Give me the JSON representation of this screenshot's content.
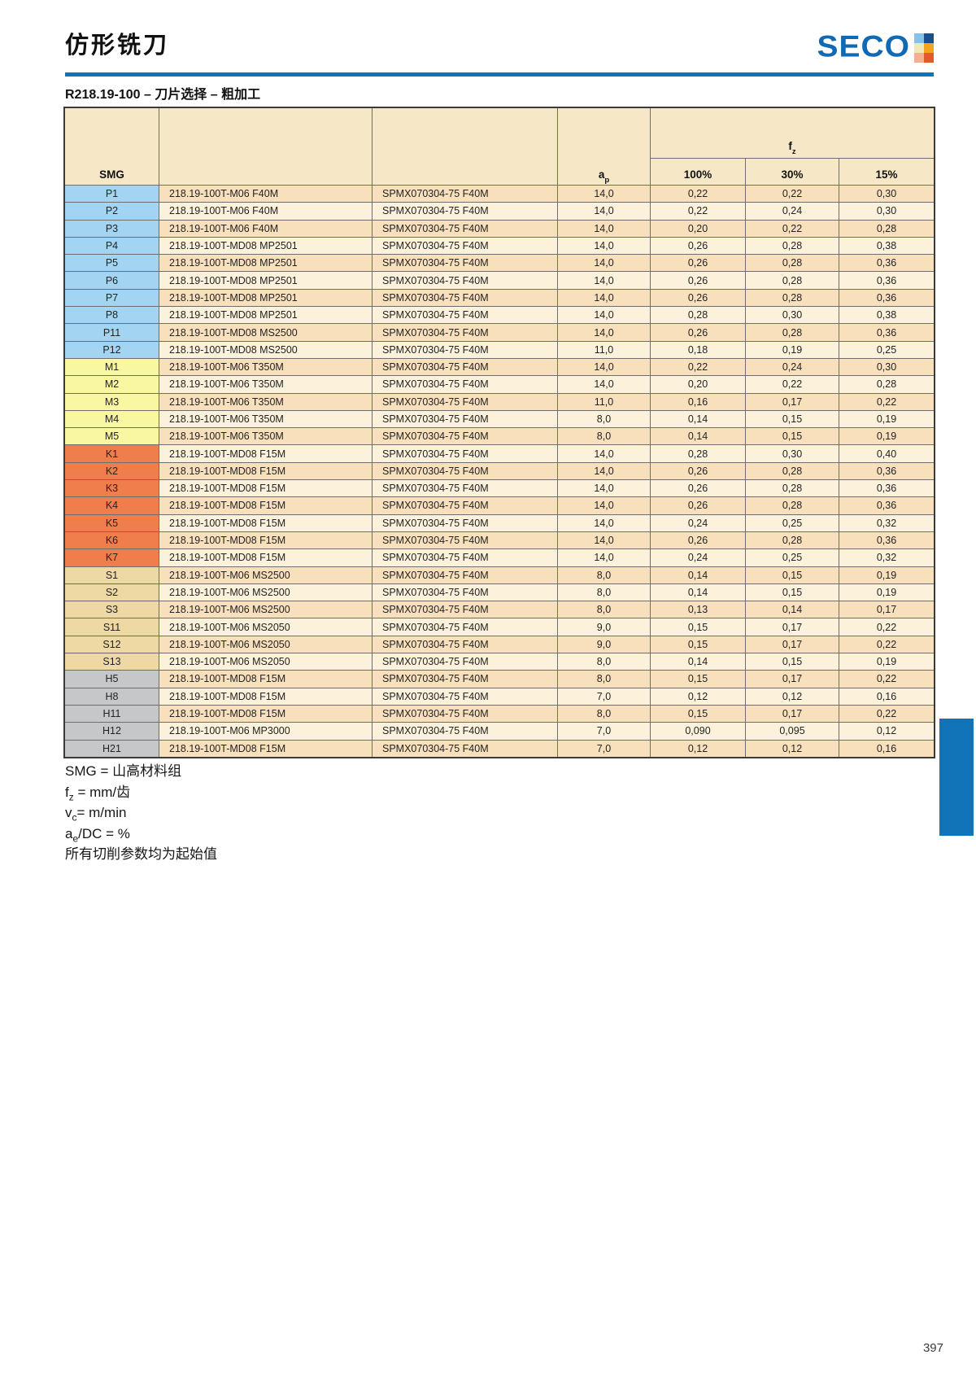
{
  "header": {
    "title": "仿形铣刀",
    "logo_text": "SECO",
    "logo_squares": [
      "#85c2e8",
      "#1c4e8e",
      "#f1e8ba",
      "#f5a41d",
      "#f1b294",
      "#e05a2b"
    ]
  },
  "section": {
    "heading": "R218.19-100 – 刀片选择 – 粗加工"
  },
  "table": {
    "col_headers": {
      "smg": "SMG",
      "ap_base": "a",
      "ap_sub": "p",
      "fz_base": "f",
      "fz_sub": "z",
      "pct_100": "100%",
      "pct_30": "30%",
      "pct_15": "15%"
    },
    "rows": [
      {
        "smg": "P1",
        "group": "P",
        "tool": "218.19-100T-M06 F40M",
        "insert": "SPMX070304-75 F40M",
        "ap": "14,0",
        "fz100": "0,22",
        "fz30": "0,22",
        "fz15": "0,30"
      },
      {
        "smg": "P2",
        "group": "P",
        "tool": "218.19-100T-M06 F40M",
        "insert": "SPMX070304-75 F40M",
        "ap": "14,0",
        "fz100": "0,22",
        "fz30": "0,24",
        "fz15": "0,30"
      },
      {
        "smg": "P3",
        "group": "P",
        "tool": "218.19-100T-M06 F40M",
        "insert": "SPMX070304-75 F40M",
        "ap": "14,0",
        "fz100": "0,20",
        "fz30": "0,22",
        "fz15": "0,28"
      },
      {
        "smg": "P4",
        "group": "P",
        "tool": "218.19-100T-MD08 MP2501",
        "insert": "SPMX070304-75 F40M",
        "ap": "14,0",
        "fz100": "0,26",
        "fz30": "0,28",
        "fz15": "0,38"
      },
      {
        "smg": "P5",
        "group": "P",
        "tool": "218.19-100T-MD08 MP2501",
        "insert": "SPMX070304-75 F40M",
        "ap": "14,0",
        "fz100": "0,26",
        "fz30": "0,28",
        "fz15": "0,36"
      },
      {
        "smg": "P6",
        "group": "P",
        "tool": "218.19-100T-MD08 MP2501",
        "insert": "SPMX070304-75 F40M",
        "ap": "14,0",
        "fz100": "0,26",
        "fz30": "0,28",
        "fz15": "0,36"
      },
      {
        "smg": "P7",
        "group": "P",
        "tool": "218.19-100T-MD08 MP2501",
        "insert": "SPMX070304-75 F40M",
        "ap": "14,0",
        "fz100": "0,26",
        "fz30": "0,28",
        "fz15": "0,36"
      },
      {
        "smg": "P8",
        "group": "P",
        "tool": "218.19-100T-MD08 MP2501",
        "insert": "SPMX070304-75 F40M",
        "ap": "14,0",
        "fz100": "0,28",
        "fz30": "0,30",
        "fz15": "0,38"
      },
      {
        "smg": "P11",
        "group": "P",
        "tool": "218.19-100T-MD08 MS2500",
        "insert": "SPMX070304-75 F40M",
        "ap": "14,0",
        "fz100": "0,26",
        "fz30": "0,28",
        "fz15": "0,36"
      },
      {
        "smg": "P12",
        "group": "P",
        "tool": "218.19-100T-MD08 MS2500",
        "insert": "SPMX070304-75 F40M",
        "ap": "11,0",
        "fz100": "0,18",
        "fz30": "0,19",
        "fz15": "0,25"
      },
      {
        "smg": "M1",
        "group": "M",
        "tool": "218.19-100T-M06 T350M",
        "insert": "SPMX070304-75 F40M",
        "ap": "14,0",
        "fz100": "0,22",
        "fz30": "0,24",
        "fz15": "0,30"
      },
      {
        "smg": "M2",
        "group": "M",
        "tool": "218.19-100T-M06 T350M",
        "insert": "SPMX070304-75 F40M",
        "ap": "14,0",
        "fz100": "0,20",
        "fz30": "0,22",
        "fz15": "0,28"
      },
      {
        "smg": "M3",
        "group": "M",
        "tool": "218.19-100T-M06 T350M",
        "insert": "SPMX070304-75 F40M",
        "ap": "11,0",
        "fz100": "0,16",
        "fz30": "0,17",
        "fz15": "0,22"
      },
      {
        "smg": "M4",
        "group": "M",
        "tool": "218.19-100T-M06 T350M",
        "insert": "SPMX070304-75 F40M",
        "ap": "8,0",
        "fz100": "0,14",
        "fz30": "0,15",
        "fz15": "0,19"
      },
      {
        "smg": "M5",
        "group": "M",
        "tool": "218.19-100T-M06 T350M",
        "insert": "SPMX070304-75 F40M",
        "ap": "8,0",
        "fz100": "0,14",
        "fz30": "0,15",
        "fz15": "0,19"
      },
      {
        "smg": "K1",
        "group": "K",
        "tool": "218.19-100T-MD08 F15M",
        "insert": "SPMX070304-75 F40M",
        "ap": "14,0",
        "fz100": "0,28",
        "fz30": "0,30",
        "fz15": "0,40"
      },
      {
        "smg": "K2",
        "group": "K",
        "tool": "218.19-100T-MD08 F15M",
        "insert": "SPMX070304-75 F40M",
        "ap": "14,0",
        "fz100": "0,26",
        "fz30": "0,28",
        "fz15": "0,36"
      },
      {
        "smg": "K3",
        "group": "K",
        "tool": "218.19-100T-MD08 F15M",
        "insert": "SPMX070304-75 F40M",
        "ap": "14,0",
        "fz100": "0,26",
        "fz30": "0,28",
        "fz15": "0,36"
      },
      {
        "smg": "K4",
        "group": "K",
        "tool": "218.19-100T-MD08 F15M",
        "insert": "SPMX070304-75 F40M",
        "ap": "14,0",
        "fz100": "0,26",
        "fz30": "0,28",
        "fz15": "0,36"
      },
      {
        "smg": "K5",
        "group": "K",
        "tool": "218.19-100T-MD08 F15M",
        "insert": "SPMX070304-75 F40M",
        "ap": "14,0",
        "fz100": "0,24",
        "fz30": "0,25",
        "fz15": "0,32"
      },
      {
        "smg": "K6",
        "group": "K",
        "tool": "218.19-100T-MD08 F15M",
        "insert": "SPMX070304-75 F40M",
        "ap": "14,0",
        "fz100": "0,26",
        "fz30": "0,28",
        "fz15": "0,36"
      },
      {
        "smg": "K7",
        "group": "K",
        "tool": "218.19-100T-MD08 F15M",
        "insert": "SPMX070304-75 F40M",
        "ap": "14,0",
        "fz100": "0,24",
        "fz30": "0,25",
        "fz15": "0,32"
      },
      {
        "smg": "S1",
        "group": "S",
        "tool": "218.19-100T-M06 MS2500",
        "insert": "SPMX070304-75 F40M",
        "ap": "8,0",
        "fz100": "0,14",
        "fz30": "0,15",
        "fz15": "0,19"
      },
      {
        "smg": "S2",
        "group": "S",
        "tool": "218.19-100T-M06 MS2500",
        "insert": "SPMX070304-75 F40M",
        "ap": "8,0",
        "fz100": "0,14",
        "fz30": "0,15",
        "fz15": "0,19"
      },
      {
        "smg": "S3",
        "group": "S",
        "tool": "218.19-100T-M06 MS2500",
        "insert": "SPMX070304-75 F40M",
        "ap": "8,0",
        "fz100": "0,13",
        "fz30": "0,14",
        "fz15": "0,17"
      },
      {
        "smg": "S11",
        "group": "S",
        "tool": "218.19-100T-M06 MS2050",
        "insert": "SPMX070304-75 F40M",
        "ap": "9,0",
        "fz100": "0,15",
        "fz30": "0,17",
        "fz15": "0,22"
      },
      {
        "smg": "S12",
        "group": "S",
        "tool": "218.19-100T-M06 MS2050",
        "insert": "SPMX070304-75 F40M",
        "ap": "9,0",
        "fz100": "0,15",
        "fz30": "0,17",
        "fz15": "0,22"
      },
      {
        "smg": "S13",
        "group": "S",
        "tool": "218.19-100T-M06 MS2050",
        "insert": "SPMX070304-75 F40M",
        "ap": "8,0",
        "fz100": "0,14",
        "fz30": "0,15",
        "fz15": "0,19"
      },
      {
        "smg": "H5",
        "group": "H",
        "tool": "218.19-100T-MD08 F15M",
        "insert": "SPMX070304-75 F40M",
        "ap": "8,0",
        "fz100": "0,15",
        "fz30": "0,17",
        "fz15": "0,22"
      },
      {
        "smg": "H8",
        "group": "H",
        "tool": "218.19-100T-MD08 F15M",
        "insert": "SPMX070304-75 F40M",
        "ap": "7,0",
        "fz100": "0,12",
        "fz30": "0,12",
        "fz15": "0,16"
      },
      {
        "smg": "H11",
        "group": "H",
        "tool": "218.19-100T-MD08 F15M",
        "insert": "SPMX070304-75 F40M",
        "ap": "8,0",
        "fz100": "0,15",
        "fz30": "0,17",
        "fz15": "0,22"
      },
      {
        "smg": "H12",
        "group": "H",
        "tool": "218.19-100T-M06 MP3000",
        "insert": "SPMX070304-75 F40M",
        "ap": "7,0",
        "fz100": "0,090",
        "fz30": "0,095",
        "fz15": "0,12"
      },
      {
        "smg": "H21",
        "group": "H",
        "tool": "218.19-100T-MD08 F15M",
        "insert": "SPMX070304-75 F40M",
        "ap": "7,0",
        "fz100": "0,12",
        "fz30": "0,12",
        "fz15": "0,16"
      }
    ]
  },
  "footnotes": {
    "smg": "SMG = 山高材料组",
    "fz_base": "f",
    "fz_sub": "z",
    "fz_rest": " = mm/齿",
    "vc_base": "v",
    "vc_sub": "c",
    "vc_rest": "= m/min",
    "ae_base": "a",
    "ae_sub": "e",
    "ae_rest": "/DC = %",
    "note": "所有切削参数均为起始值"
  },
  "footer": {
    "page_number": "397"
  },
  "colors": {
    "accent_blue": "#1173b8",
    "logo_blue": "#0f6ab3",
    "header_bg": "#f6e8c6",
    "row_dark": "#f9e0bd",
    "row_light": "#fcf2dc",
    "groups": {
      "P": "#a3d5f2",
      "M": "#faf7a3",
      "K": "#f07e4d",
      "S": "#eed9a4",
      "H": "#c6c7c9"
    },
    "border_outer": "#3a3a3a",
    "border_inner": "#6e6e6e"
  }
}
